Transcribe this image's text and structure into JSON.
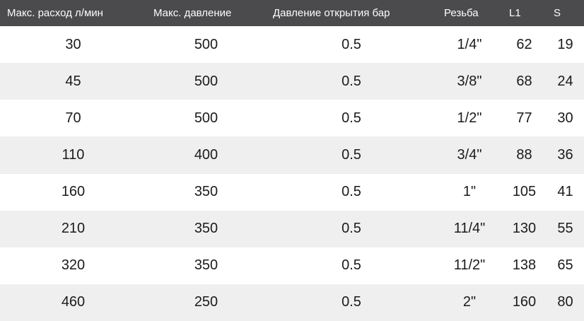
{
  "table": {
    "columns": [
      {
        "label": "Макс. расход л/мин"
      },
      {
        "label": "Макс. давление"
      },
      {
        "label": "Давление открытия бар"
      },
      {
        "label": "Резьба"
      },
      {
        "label": "L1"
      },
      {
        "label": "S"
      }
    ],
    "rows": [
      {
        "cells": [
          "30",
          "500",
          "0.5",
          "1/4\"",
          "62",
          "19"
        ]
      },
      {
        "cells": [
          "45",
          "500",
          "0.5",
          "3/8\"",
          "68",
          "24"
        ]
      },
      {
        "cells": [
          "70",
          "500",
          "0.5",
          "1/2\"",
          "77",
          "30"
        ]
      },
      {
        "cells": [
          "110",
          "400",
          "0.5",
          "3/4\"",
          "88",
          "36"
        ]
      },
      {
        "cells": [
          "160",
          "350",
          "0.5",
          "1\"",
          "105",
          "41"
        ]
      },
      {
        "cells": [
          "210",
          "350",
          "0.5",
          "11/4\"",
          "130",
          "55"
        ]
      },
      {
        "cells": [
          "320",
          "350",
          "0.5",
          "11/2\"",
          "138",
          "65"
        ]
      },
      {
        "cells": [
          "460",
          "250",
          "0.5",
          "2\"",
          "160",
          "80"
        ]
      }
    ]
  },
  "colors": {
    "header_bg": "#4b4b4d",
    "header_text": "#fdfdfd",
    "row_bg": "#ffffff",
    "row_stripe_bg": "#efefef",
    "cell_text": "#1b1b1b"
  },
  "chart_data": {
    "type": "table",
    "title": "",
    "columns": [
      "Макс. расход л/мин",
      "Макс. давление",
      "Давление открытия бар",
      "Резьба",
      "L1",
      "S"
    ],
    "rows": [
      [
        30,
        500,
        0.5,
        "1/4\"",
        62,
        19
      ],
      [
        45,
        500,
        0.5,
        "3/8\"",
        68,
        24
      ],
      [
        70,
        500,
        0.5,
        "1/2\"",
        77,
        30
      ],
      [
        110,
        400,
        0.5,
        "3/4\"",
        88,
        36
      ],
      [
        160,
        350,
        0.5,
        "1\"",
        105,
        41
      ],
      [
        210,
        350,
        0.5,
        "11/4\"",
        130,
        55
      ],
      [
        320,
        350,
        0.5,
        "11/2\"",
        138,
        65
      ],
      [
        460,
        250,
        0.5,
        "2\"",
        160,
        80
      ]
    ],
    "layout": {
      "striped_rows": true,
      "header_alignment": "left",
      "cell_alignment": "center"
    }
  }
}
